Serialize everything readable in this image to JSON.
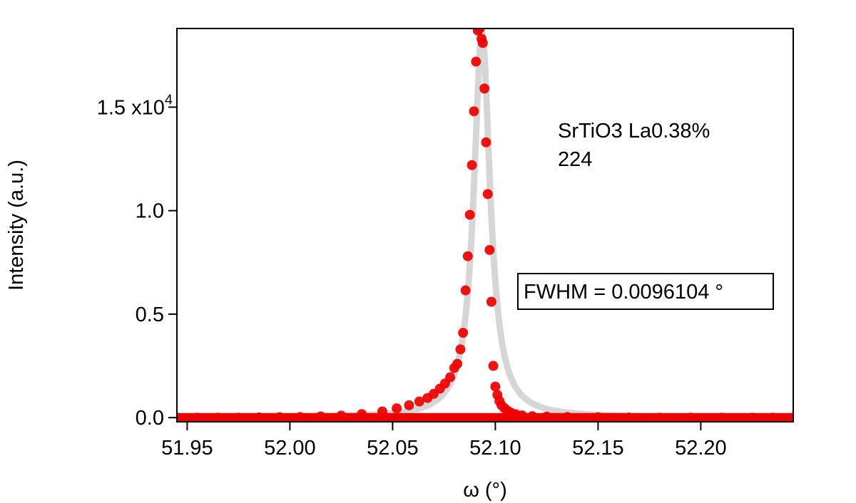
{
  "chart_data": {
    "type": "scatter",
    "title": "",
    "xlabel": "ω (°)",
    "ylabel": "Intensity (a.u.)",
    "xlim": [
      51.945,
      52.245
    ],
    "ylim": [
      -200,
      18800
    ],
    "grid": false,
    "legend": "none",
    "x_ticks": [
      {
        "value": 51.95,
        "label": "51.95"
      },
      {
        "value": 52.0,
        "label": "52.00"
      },
      {
        "value": 52.05,
        "label": "52.05"
      },
      {
        "value": 52.1,
        "label": "52.10"
      },
      {
        "value": 52.15,
        "label": "52.15"
      },
      {
        "value": 52.2,
        "label": "52.20"
      }
    ],
    "y_ticks": [
      {
        "value": 0,
        "label": "0.0"
      },
      {
        "value": 5000,
        "label": "0.5"
      },
      {
        "value": 10000,
        "label": "1.0"
      },
      {
        "value": 15000,
        "label": "1.5 x10",
        "exp": "4"
      }
    ],
    "annotation": {
      "line1": "SrTiO3 La0.38%",
      "line2": "224"
    },
    "fwhm_box": "FWHM = 0.0096104 °",
    "colors": {
      "data": "#ee0000",
      "fit": "#d6d6d6",
      "axis": "#000000"
    },
    "series": [
      {
        "kind": "points",
        "x": [
          51.945,
          51.955,
          51.965,
          51.975,
          51.985,
          51.995,
          52.005,
          52.015,
          52.025,
          52.035,
          52.045,
          52.052,
          52.058,
          52.063,
          52.067,
          52.07,
          52.073,
          52.0755,
          52.078,
          52.08,
          52.0815,
          52.083,
          52.0843,
          52.0855,
          52.0866,
          52.0876,
          52.0886,
          52.0896,
          52.0906,
          52.0915,
          52.0924,
          52.0933,
          52.0939,
          52.0947,
          52.0955,
          52.0963,
          52.0972,
          52.0981,
          52.099,
          52.1,
          52.101,
          52.102,
          52.103,
          52.1045,
          52.1062,
          52.108,
          52.11,
          52.113,
          52.118,
          52.125,
          52.135,
          52.15,
          52.165,
          52.18,
          52.195,
          52.21,
          52.225,
          52.235,
          52.245
        ],
        "y": [
          0,
          0,
          0,
          0,
          10,
          20,
          30,
          60,
          100,
          170,
          300,
          450,
          600,
          780,
          950,
          1150,
          1400,
          1650,
          1950,
          2400,
          2600,
          3300,
          4100,
          6150,
          7800,
          9800,
          12200,
          14800,
          17200,
          18700,
          18800,
          18300,
          18100,
          15900,
          13300,
          10800,
          8100,
          5600,
          2500,
          1500,
          1100,
          800,
          600,
          450,
          320,
          220,
          160,
          110,
          70,
          50,
          30,
          15,
          5,
          0,
          0,
          0,
          0,
          0,
          0
        ]
      },
      {
        "kind": "fit",
        "center": 52.0935,
        "fwhm": 0.0096104,
        "amplitude": 18600
      }
    ]
  }
}
